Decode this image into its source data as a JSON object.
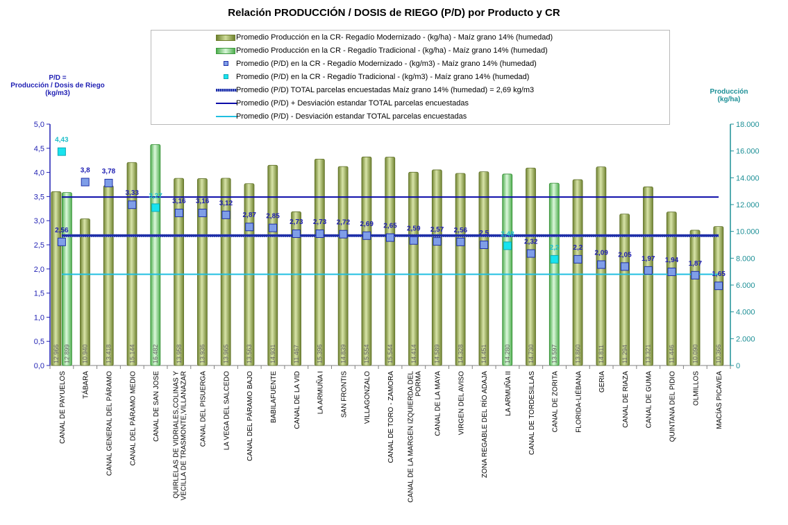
{
  "chart_data": {
    "type": "bar",
    "title": "Relación PRODUCCIÓN / DOSIS de RIEGO (P/D) por Producto y CR",
    "y_left_label": "P/D =\nProducción / Dosis de Riego\n(kg/m3)",
    "y_right_label": "Producción\n(kg/ha)",
    "y_left_lim": [
      0,
      5
    ],
    "y_left_ticks": [
      "0,0",
      "0,5",
      "1,0",
      "1,5",
      "2,0",
      "2,5",
      "3,0",
      "3,5",
      "4,0",
      "4,5",
      "5,0"
    ],
    "y_right_lim": [
      0,
      18000
    ],
    "y_right_ticks": [
      "0",
      "2.000",
      "4.000",
      "6.000",
      "8.000",
      "10.000",
      "12.000",
      "14.000",
      "16.000",
      "18.000"
    ],
    "categories": [
      "CANAL DE PAYUELOS",
      "TÁBARA",
      "CANAL GENERAL DEL PÁRAMO",
      "CANAL DEL PÁRAMO MEDIO",
      "CANAL DE SAN JOSE",
      "QUIRLELAS DE VIDRIALES,COLINAS Y\nVECILLA DE TRASMONTE,VILLANAZAR",
      "CANAL DEL PISUERGA",
      "LA VEGA DEL SALCEDO",
      "CANAL DEL PÁRAMO BAJO",
      "BABILAFUENTE",
      "CANAL DE LA VID",
      "LA ARMUÑA I",
      "SAN FRONTIS",
      "VILLAGONZALO",
      "CANAL DE TORO - ZAMORA",
      "CANAL DE LA MARGEN IZQUIERDA DEL\nPORMA",
      "CANAL DE LA MAYA",
      "VIRGEN DEL AVISO",
      "ZONA REGABLE DEL RÍO ADAJA",
      "LA ARMUÑA II",
      "CANAL DE TORDESILLAS",
      "CANAL DE ZORITA",
      "FLORIDA-LIÉBANA",
      "GERIA",
      "CANAL DE RIAZA",
      "CANAL DE GUMA",
      "QUINTANA DEL PIDIO",
      "OLMILLOS",
      "MACÍAS PICAVEA"
    ],
    "series": [
      {
        "name": "Promedio Producción en la CR- Regadío Modernizado -  (kg/ha) - Maíz grano 14% (humedad)",
        "type": "bar",
        "axis": "right",
        "color": "#a9bb6a",
        "values": [
          12966,
          10940,
          13418,
          15144,
          null,
          13958,
          13936,
          13965,
          13563,
          14931,
          11467,
          15396,
          14839,
          15554,
          15544,
          14414,
          14589,
          14328,
          14451,
          null,
          14730,
          null,
          13860,
          14811,
          11294,
          13321,
          11446,
          10090,
          10366
        ],
        "labels": [
          "12.966",
          "10.940",
          "13.418",
          "15.144",
          "",
          "13.958",
          "13.936",
          "13.965",
          "13.563",
          "14.931",
          "11.467",
          "15.396",
          "14.839",
          "15.554",
          "15.544",
          "14.414",
          "14.589",
          "14.328",
          "14.451",
          "",
          "14.730",
          "",
          "13.860",
          "14.811",
          "11.294",
          "13.321",
          "11.446",
          "10.090",
          "10.366"
        ]
      },
      {
        "name": "Promedio Producción en la CR - Regadío Tradicional -  (kg/ha) - Maíz grano 14% (humedad)",
        "type": "bar",
        "axis": "right",
        "color": "#8fd88f",
        "values": [
          12899,
          null,
          null,
          null,
          16482,
          null,
          null,
          null,
          null,
          null,
          null,
          null,
          null,
          null,
          null,
          null,
          null,
          null,
          null,
          14280,
          null,
          13597,
          null,
          null,
          null,
          null,
          null,
          null,
          null
        ],
        "labels": [
          "12.899",
          "",
          "",
          "",
          "16.482",
          "",
          "",
          "",
          "",
          "",
          "",
          "",
          "",
          "",
          "",
          "",
          "",
          "",
          "",
          "14.280",
          "",
          "13.597",
          "",
          "",
          "",
          "",
          "",
          "",
          ""
        ]
      },
      {
        "name": "Promedio (P/D) en la CR - Regadío Modernizado - (kg/m3) - Maíz grano 14% (humedad)",
        "type": "scatter",
        "axis": "left",
        "color": "#7f9ee8",
        "values": [
          2.56,
          3.8,
          3.78,
          3.33,
          null,
          3.16,
          3.16,
          3.12,
          2.87,
          2.85,
          2.73,
          2.73,
          2.72,
          2.69,
          2.65,
          2.59,
          2.57,
          2.56,
          2.5,
          null,
          2.32,
          null,
          2.2,
          2.09,
          2.05,
          1.97,
          1.94,
          1.87,
          1.65
        ],
        "labels": [
          "2,56",
          "3,8",
          "3,78",
          "3,33",
          "",
          "3,16",
          "3,16",
          "3,12",
          "2,87",
          "2,85",
          "2,73",
          "2,73",
          "2,72",
          "2,69",
          "2,65",
          "2,59",
          "2,57",
          "2,56",
          "2,5",
          "",
          "2,32",
          "",
          "2,2",
          "2,09",
          "2,05",
          "1,97",
          "1,94",
          "1,87",
          "1,65"
        ]
      },
      {
        "name": "Promedio (P/D) en la CR - Regadío Tradicional - (kg/m3) - Maíz grano 14% (humedad)",
        "type": "scatter",
        "axis": "left",
        "color": "#19e3ee",
        "values": [
          4.43,
          null,
          null,
          null,
          3.27,
          null,
          null,
          null,
          null,
          null,
          null,
          null,
          null,
          null,
          null,
          null,
          null,
          null,
          null,
          2.48,
          null,
          2.2,
          null,
          null,
          null,
          null,
          null,
          null,
          null
        ],
        "labels": [
          "4,43",
          "",
          "",
          "",
          "3,27",
          "",
          "",
          "",
          "",
          "",
          "",
          "",
          "",
          "",
          "",
          "",
          "",
          "",
          "",
          "2,48",
          "",
          "2,2",
          "",
          "",
          "",
          "",
          "",
          "",
          ""
        ]
      },
      {
        "name": "Promedio (P/D) TOTAL parcelas encuestadas Maíz grano 14% (humedad) = 2,69 kg/m3",
        "type": "line",
        "axis": "left",
        "color": "#1f2fa8",
        "value": 2.69
      },
      {
        "name": "Promedio (P/D) + Desviación estandar TOTAL parcelas encuestadas",
        "type": "line",
        "axis": "left",
        "color": "#0a0aa8",
        "value": 3.49
      },
      {
        "name": "Promedio (P/D) - Desviación estandar TOTAL parcelas encuestadas",
        "type": "line",
        "axis": "left",
        "color": "#1fbfe0",
        "value": 1.89
      }
    ],
    "legend_position": "top-center",
    "grid": false
  }
}
